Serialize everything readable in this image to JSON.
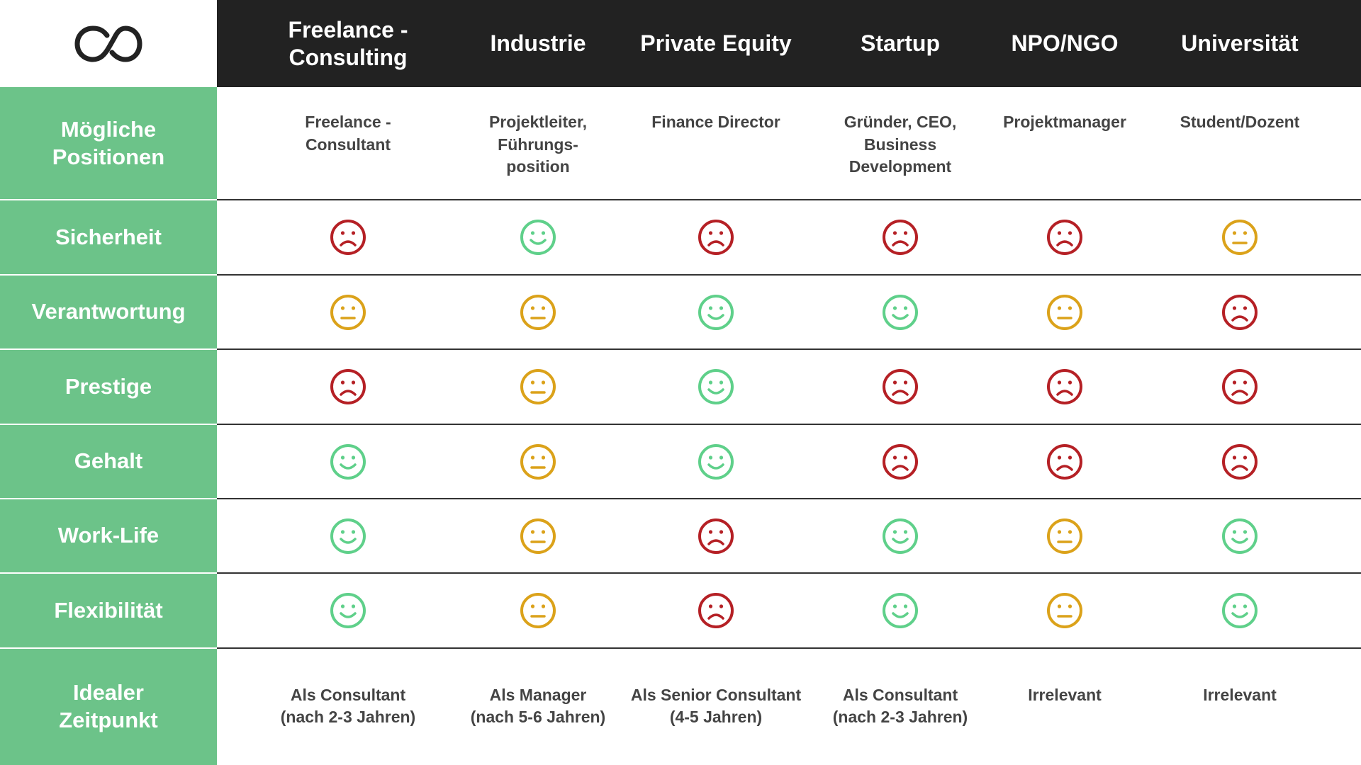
{
  "header": {
    "columns": [
      "Freelance -\nConsulting",
      "Industrie",
      "Private Equity",
      "Startup",
      "NPO/NGO",
      "Universität"
    ]
  },
  "rows": [
    {
      "label": "Mögliche\nPositionen",
      "cells": [
        "Freelance -\nConsultant",
        "Projektleiter,\nFührungs-\nposition",
        "Finance Director",
        "Gründer, CEO,\nBusiness\nDevelopment",
        "Projektmanager",
        "Student/Dozent"
      ]
    },
    {
      "label": "Sicherheit",
      "cells": [
        -1,
        1,
        -1,
        -1,
        -1,
        0
      ]
    },
    {
      "label": "Verantwortung",
      "cells": [
        0,
        0,
        1,
        1,
        0,
        -1
      ]
    },
    {
      "label": "Prestige",
      "cells": [
        -1,
        0,
        1,
        -1,
        -1,
        -1
      ]
    },
    {
      "label": "Gehalt",
      "cells": [
        1,
        0,
        1,
        -1,
        -1,
        -1
      ]
    },
    {
      "label": "Work-Life",
      "cells": [
        1,
        0,
        -1,
        1,
        0,
        1
      ]
    },
    {
      "label": "Flexibilität",
      "cells": [
        1,
        0,
        -1,
        1,
        0,
        1
      ]
    },
    {
      "label": "Idealer\nZeitpunkt",
      "cells": [
        "Als Consultant\n(nach 2-3 Jahren)",
        "Als Manager\n(nach 5-6 Jahren)",
        "Als Senior Consultant\n(4-5 Jahren)",
        "Als Consultant\n(nach 2-3 Jahren)",
        "Irrelevant",
        "Irrelevant"
      ]
    }
  ]
}
